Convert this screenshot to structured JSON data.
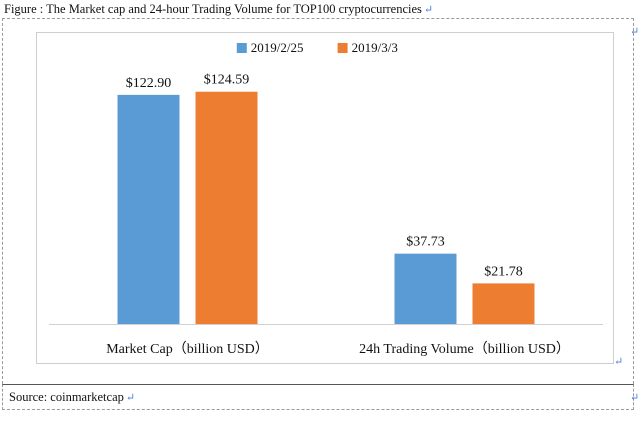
{
  "figure": {
    "title": "Figure : The Market cap and 24-hour Trading Volume for TOP100 cryptocurrencies",
    "source": "Source: coinmarketcap",
    "para_mark": "↵"
  },
  "chart_data": {
    "type": "bar",
    "categories": [
      "Market Cap（billion USD）",
      "24h Trading Volume（billion USD）"
    ],
    "series": [
      {
        "name": "2019/2/25",
        "values": [
          122.9,
          37.73
        ],
        "labels": [
          "$122.90",
          "$37.73"
        ],
        "color": "#5b9bd5"
      },
      {
        "name": "2019/3/3",
        "values": [
          124.59,
          21.78
        ],
        "labels": [
          "$124.59",
          "$21.78"
        ],
        "color": "#ed7d31"
      }
    ],
    "ylim": [
      0,
      140
    ],
    "grid": false,
    "legend_position": "top-center"
  }
}
